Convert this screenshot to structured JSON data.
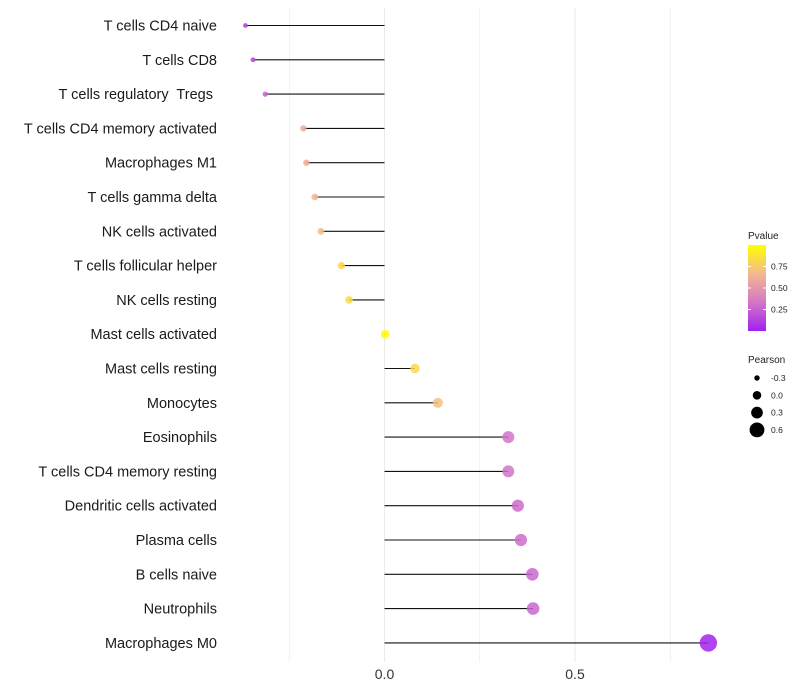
{
  "chart_data": {
    "type": "lollipop",
    "title": "",
    "xlabel": "",
    "ylabel": "",
    "xlim": [
      -0.5,
      0.9
    ],
    "x_ticks": [
      0.0,
      0.5
    ],
    "x_tick_labels": [
      "0.0",
      "0.5"
    ],
    "grid": "vertical lines",
    "categories": [
      "T cells CD4 naive",
      "T cells CD8",
      "T cells regulatory  Tregs ",
      "T cells CD4 memory activated",
      "Macrophages M1",
      "T cells gamma delta",
      "NK cells activated",
      "T cells follicular helper",
      "NK cells resting",
      "Mast cells activated",
      "Mast cells resting",
      "Monocytes",
      "Eosinophils",
      "T cells CD4 memory resting",
      "Dendritic cells activated",
      "Plasma cells",
      "B cells naive",
      "Neutrophils",
      "Macrophages M0"
    ],
    "pearson": [
      -0.365,
      -0.345,
      -0.313,
      -0.213,
      -0.205,
      -0.183,
      -0.167,
      -0.113,
      -0.093,
      0.002,
      0.08,
      0.14,
      0.325,
      0.325,
      0.35,
      0.358,
      0.388,
      0.39,
      0.85
    ],
    "pvalue": [
      0.12,
      0.15,
      0.25,
      0.6,
      0.6,
      0.65,
      0.68,
      0.8,
      0.84,
      0.99,
      0.82,
      0.7,
      0.32,
      0.32,
      0.29,
      0.3,
      0.27,
      0.27,
      0.01
    ],
    "legend": {
      "color": {
        "title": "Pvalue",
        "ticks": [
          0.25,
          0.5,
          0.75
        ],
        "tick_labels": [
          "0.25",
          "0.50",
          "0.75"
        ],
        "range": [
          0.0,
          1.0
        ],
        "colors": [
          "#a020f0",
          "#d476c8",
          "#f3b98f",
          "#ffff00"
        ]
      },
      "size": {
        "title": "Pearson",
        "values": [
          -0.3,
          0.0,
          0.3,
          0.6
        ],
        "labels": [
          "-0.3",
          "0.0",
          "0.3",
          "0.6"
        ]
      },
      "position": "right"
    }
  }
}
